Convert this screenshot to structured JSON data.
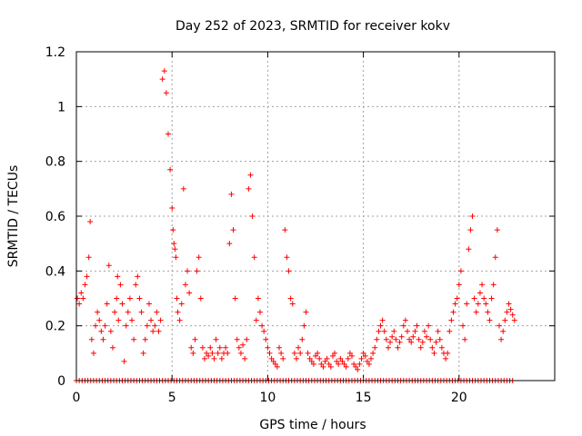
{
  "chart_data": {
    "type": "scatter",
    "title": "Day 252 of 2023, SRMTID for receiver kokv",
    "xlabel": "GPS time / hours",
    "ylabel": "SRMTID / TECUs",
    "xlim": [
      0,
      25
    ],
    "ylim": [
      0,
      1.2
    ],
    "xticks": [
      0,
      5,
      10,
      15,
      20
    ],
    "xtick_labels": [
      "0",
      "5",
      "10",
      "15",
      "20"
    ],
    "yticks": [
      0,
      0.2,
      0.4,
      0.6,
      0.8,
      1.0,
      1.2
    ],
    "ytick_labels": [
      "0",
      "0.2",
      "0.4",
      "0.6",
      "0.8",
      "1",
      "1.2"
    ],
    "grid": true,
    "marker": "+",
    "color": "#ff0000",
    "series": [
      {
        "name": "SRMTID",
        "x": [
          0.05,
          0.15,
          0.25,
          0.35,
          0.45,
          0.55,
          0.65,
          0.72,
          0.8,
          0.9,
          1.0,
          1.1,
          1.2,
          1.3,
          1.4,
          1.5,
          1.6,
          1.7,
          1.8,
          1.9,
          2.0,
          2.1,
          2.15,
          2.2,
          2.3,
          2.4,
          2.5,
          2.6,
          2.7,
          2.8,
          2.9,
          3.0,
          3.1,
          3.2,
          3.3,
          3.4,
          3.5,
          3.6,
          3.7,
          3.8,
          3.9,
          4.0,
          4.1,
          4.2,
          4.3,
          4.4,
          4.5,
          4.6,
          4.7,
          4.8,
          4.9,
          5.0,
          5.05,
          5.1,
          5.15,
          5.2,
          5.25,
          5.3,
          5.4,
          5.5,
          5.6,
          5.7,
          5.8,
          5.9,
          6.0,
          6.1,
          6.2,
          6.3,
          6.4,
          6.5,
          6.6,
          6.7,
          6.8,
          6.9,
          7.0,
          7.1,
          7.2,
          7.3,
          7.4,
          7.5,
          7.6,
          7.7,
          7.8,
          7.9,
          8.0,
          8.1,
          8.2,
          8.3,
          8.4,
          8.5,
          8.6,
          8.7,
          8.8,
          8.9,
          9.0,
          9.1,
          9.2,
          9.3,
          9.4,
          9.5,
          9.6,
          9.7,
          9.8,
          9.9,
          10.0,
          10.1,
          10.2,
          10.3,
          10.4,
          10.5,
          10.6,
          10.7,
          10.8,
          10.9,
          11.0,
          11.1,
          11.2,
          11.3,
          11.4,
          11.5,
          11.6,
          11.7,
          11.8,
          11.9,
          12.0,
          12.1,
          12.2,
          12.3,
          12.4,
          12.5,
          12.6,
          12.7,
          12.8,
          12.9,
          13.0,
          13.1,
          13.2,
          13.3,
          13.4,
          13.5,
          13.6,
          13.7,
          13.8,
          13.9,
          14.0,
          14.1,
          14.2,
          14.3,
          14.4,
          14.5,
          14.6,
          14.7,
          14.8,
          14.9,
          15.0,
          15.1,
          15.2,
          15.3,
          15.4,
          15.5,
          15.6,
          15.7,
          15.8,
          15.9,
          16.0,
          16.1,
          16.2,
          16.3,
          16.4,
          16.5,
          16.6,
          16.7,
          16.8,
          16.9,
          17.0,
          17.1,
          17.2,
          17.3,
          17.4,
          17.5,
          17.6,
          17.7,
          17.8,
          17.9,
          18.0,
          18.1,
          18.2,
          18.3,
          18.4,
          18.5,
          18.6,
          18.7,
          18.8,
          18.9,
          19.0,
          19.1,
          19.2,
          19.3,
          19.4,
          19.5,
          19.6,
          19.7,
          19.8,
          19.9,
          20.0,
          20.1,
          20.2,
          20.3,
          20.4,
          20.5,
          20.6,
          20.7,
          20.8,
          20.9,
          21.0,
          21.1,
          21.2,
          21.3,
          21.4,
          21.5,
          21.6,
          21.7,
          21.8,
          21.9,
          22.0,
          22.1,
          22.2,
          22.3,
          22.4,
          22.5,
          22.6,
          22.7,
          22.8,
          22.9
        ],
        "y": [
          0.3,
          0.28,
          0.32,
          0.3,
          0.35,
          0.38,
          0.45,
          0.58,
          0.15,
          0.1,
          0.2,
          0.25,
          0.22,
          0.18,
          0.15,
          0.2,
          0.28,
          0.42,
          0.18,
          0.12,
          0.25,
          0.3,
          0.38,
          0.22,
          0.35,
          0.28,
          0.07,
          0.2,
          0.25,
          0.3,
          0.22,
          0.15,
          0.35,
          0.38,
          0.3,
          0.25,
          0.1,
          0.15,
          0.2,
          0.28,
          0.22,
          0.18,
          0.2,
          0.25,
          0.18,
          0.22,
          1.1,
          1.13,
          1.05,
          0.9,
          0.77,
          0.63,
          0.55,
          0.5,
          0.48,
          0.45,
          0.3,
          0.25,
          0.22,
          0.28,
          0.7,
          0.35,
          0.4,
          0.32,
          0.12,
          0.1,
          0.15,
          0.4,
          0.45,
          0.3,
          0.12,
          0.08,
          0.1,
          0.09,
          0.12,
          0.1,
          0.08,
          0.15,
          0.1,
          0.12,
          0.08,
          0.1,
          0.12,
          0.1,
          0.5,
          0.68,
          0.55,
          0.3,
          0.15,
          0.12,
          0.1,
          0.13,
          0.08,
          0.15,
          0.7,
          0.75,
          0.6,
          0.45,
          0.22,
          0.3,
          0.25,
          0.2,
          0.18,
          0.15,
          0.12,
          0.1,
          0.08,
          0.07,
          0.06,
          0.05,
          0.12,
          0.1,
          0.08,
          0.55,
          0.45,
          0.4,
          0.3,
          0.28,
          0.1,
          0.08,
          0.12,
          0.1,
          0.15,
          0.2,
          0.25,
          0.1,
          0.08,
          0.07,
          0.06,
          0.09,
          0.1,
          0.08,
          0.06,
          0.05,
          0.07,
          0.08,
          0.06,
          0.05,
          0.09,
          0.1,
          0.07,
          0.06,
          0.08,
          0.07,
          0.06,
          0.05,
          0.08,
          0.1,
          0.09,
          0.06,
          0.05,
          0.04,
          0.06,
          0.08,
          0.1,
          0.09,
          0.07,
          0.06,
          0.08,
          0.1,
          0.12,
          0.15,
          0.18,
          0.2,
          0.22,
          0.18,
          0.15,
          0.12,
          0.14,
          0.16,
          0.18,
          0.15,
          0.12,
          0.14,
          0.16,
          0.2,
          0.22,
          0.18,
          0.15,
          0.14,
          0.16,
          0.18,
          0.2,
          0.15,
          0.12,
          0.14,
          0.18,
          0.16,
          0.2,
          0.15,
          0.12,
          0.1,
          0.14,
          0.18,
          0.15,
          0.12,
          0.1,
          0.08,
          0.1,
          0.18,
          0.22,
          0.25,
          0.28,
          0.3,
          0.35,
          0.4,
          0.2,
          0.15,
          0.28,
          0.48,
          0.55,
          0.6,
          0.3,
          0.25,
          0.28,
          0.32,
          0.35,
          0.3,
          0.28,
          0.25,
          0.22,
          0.3,
          0.35,
          0.45,
          0.55,
          0.2,
          0.15,
          0.18,
          0.22,
          0.25,
          0.28,
          0.26,
          0.24,
          0.22
        ]
      },
      {
        "name": "zero baseline",
        "x_range": [
          0,
          22.9
        ],
        "x_step": 0.15,
        "y": 0
      }
    ]
  }
}
